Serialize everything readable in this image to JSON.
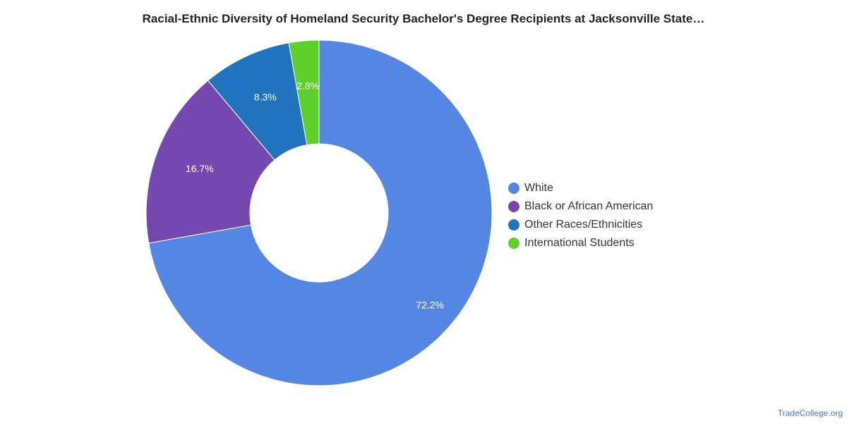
{
  "chart_data": {
    "type": "pie",
    "title": "Racial-Ethnic Diversity of Homeland Security Bachelor's Degree Recipients at Jacksonville State…",
    "categories": [
      "White",
      "Black or African American",
      "Other Races/Ethnicities",
      "International Students"
    ],
    "values": [
      72.2,
      16.7,
      8.3,
      2.8
    ],
    "value_labels": [
      "72.2%",
      "16.7%",
      "8.3%",
      "2.8%"
    ],
    "colors": [
      "#5486e3",
      "#7548b0",
      "#1f74bd",
      "#5ecf2b"
    ],
    "donut": true,
    "legend_position": "right"
  },
  "watermark": "TradeCollege.org"
}
